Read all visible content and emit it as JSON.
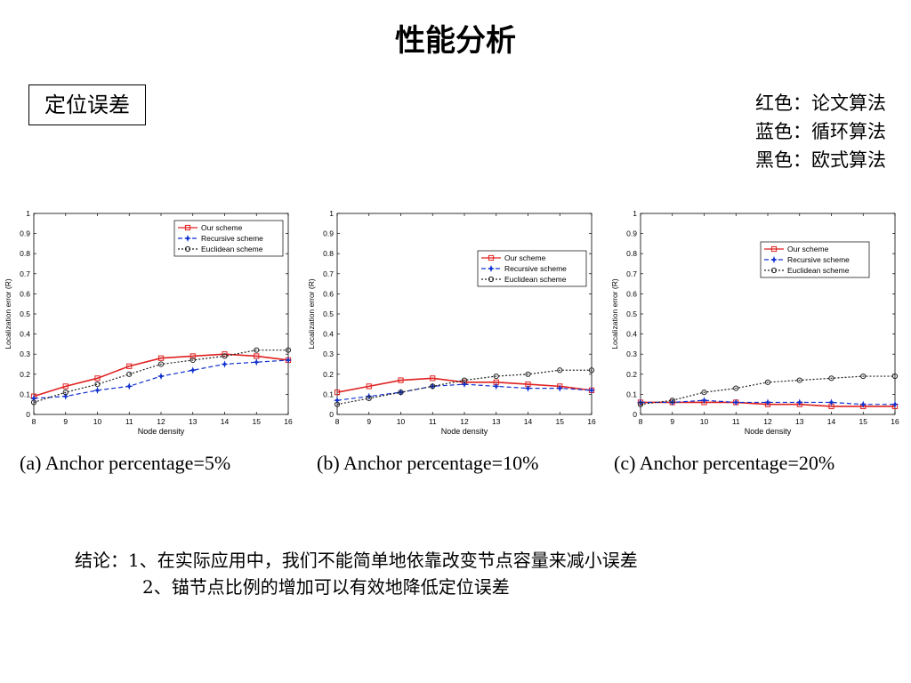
{
  "slide": {
    "title": "性能分析",
    "box_label": "定位误差",
    "color_notes": [
      "红色：论文算法",
      "蓝色：循环算法",
      "黑色：欧式算法"
    ],
    "conclusion_line1": "结论：1、在实际应用中，我们不能简单地依靠改变节点容量来减小误差",
    "conclusion_line2": "2、锚节点比例的增加可以有效地降低定位误差"
  },
  "colors": {
    "our": "#e02020",
    "recursive": "#1030d0",
    "euclidean": "#222222"
  },
  "chart_data": [
    {
      "type": "line",
      "caption": "(a)   Anchor percentage=5%",
      "xlabel": "Node density",
      "ylabel": "Localization error (R)",
      "xlim": [
        8,
        16
      ],
      "ylim": [
        0,
        1
      ],
      "x": [
        8,
        9,
        10,
        11,
        12,
        13,
        14,
        15,
        16
      ],
      "xticks": [
        "8",
        "9",
        "10",
        "11",
        "12",
        "13",
        "14",
        "15",
        "16"
      ],
      "yticks": [
        "0",
        "0.1",
        "0.2",
        "0.3",
        "0.4",
        "0.5",
        "0.6",
        "0.7",
        "0.8",
        "0.9",
        "1"
      ],
      "legend_position": "top-right",
      "series": [
        {
          "name": "Our scheme",
          "values": [
            0.09,
            0.14,
            0.18,
            0.24,
            0.28,
            0.29,
            0.3,
            0.29,
            0.27
          ]
        },
        {
          "name": "Recursive scheme",
          "values": [
            0.08,
            0.09,
            0.12,
            0.14,
            0.19,
            0.22,
            0.25,
            0.26,
            0.27
          ]
        },
        {
          "name": "Euclidean scheme",
          "values": [
            0.06,
            0.11,
            0.15,
            0.2,
            0.25,
            0.27,
            0.29,
            0.32,
            0.32
          ]
        }
      ]
    },
    {
      "type": "line",
      "caption": "(b)   Anchor percentage=10%",
      "xlabel": "Node density",
      "ylabel": "Localization error (R)",
      "xlim": [
        8,
        16
      ],
      "ylim": [
        0,
        1
      ],
      "x": [
        8,
        9,
        10,
        11,
        12,
        13,
        14,
        15,
        16
      ],
      "xticks": [
        "8",
        "9",
        "10",
        "11",
        "12",
        "13",
        "14",
        "15",
        "16"
      ],
      "yticks": [
        "0",
        "0.1",
        "0.2",
        "0.3",
        "0.4",
        "0.5",
        "0.6",
        "0.7",
        "0.8",
        "0.9",
        "1"
      ],
      "legend_position": "right",
      "series": [
        {
          "name": "Our scheme",
          "values": [
            0.11,
            0.14,
            0.17,
            0.18,
            0.16,
            0.16,
            0.15,
            0.14,
            0.12
          ]
        },
        {
          "name": "Recursive scheme",
          "values": [
            0.07,
            0.09,
            0.11,
            0.14,
            0.15,
            0.14,
            0.13,
            0.13,
            0.12
          ]
        },
        {
          "name": "Euclidean scheme",
          "values": [
            0.05,
            0.08,
            0.11,
            0.14,
            0.17,
            0.19,
            0.2,
            0.22,
            0.22
          ]
        }
      ]
    },
    {
      "type": "line",
      "caption": "(c)   Anchor percentage=20%",
      "xlabel": "Node density",
      "ylabel": "Localization error (R)",
      "xlim": [
        8,
        16
      ],
      "ylim": [
        0,
        1
      ],
      "x": [
        8,
        9,
        10,
        11,
        12,
        13,
        14,
        15,
        16
      ],
      "xticks": [
        "8",
        "9",
        "10",
        "11",
        "12",
        "13",
        "14",
        "15",
        "16"
      ],
      "yticks": [
        "0",
        "0.1",
        "0.2",
        "0.3",
        "0.4",
        "0.5",
        "0.6",
        "0.7",
        "0.8",
        "0.9",
        "1"
      ],
      "legend_position": "top-right",
      "series": [
        {
          "name": "Our scheme",
          "values": [
            0.06,
            0.06,
            0.06,
            0.06,
            0.05,
            0.05,
            0.04,
            0.04,
            0.04
          ]
        },
        {
          "name": "Recursive scheme",
          "values": [
            0.06,
            0.06,
            0.07,
            0.06,
            0.06,
            0.06,
            0.06,
            0.05,
            0.05
          ]
        },
        {
          "name": "Euclidean scheme",
          "values": [
            0.05,
            0.07,
            0.11,
            0.13,
            0.16,
            0.17,
            0.18,
            0.19,
            0.19
          ]
        }
      ]
    }
  ]
}
